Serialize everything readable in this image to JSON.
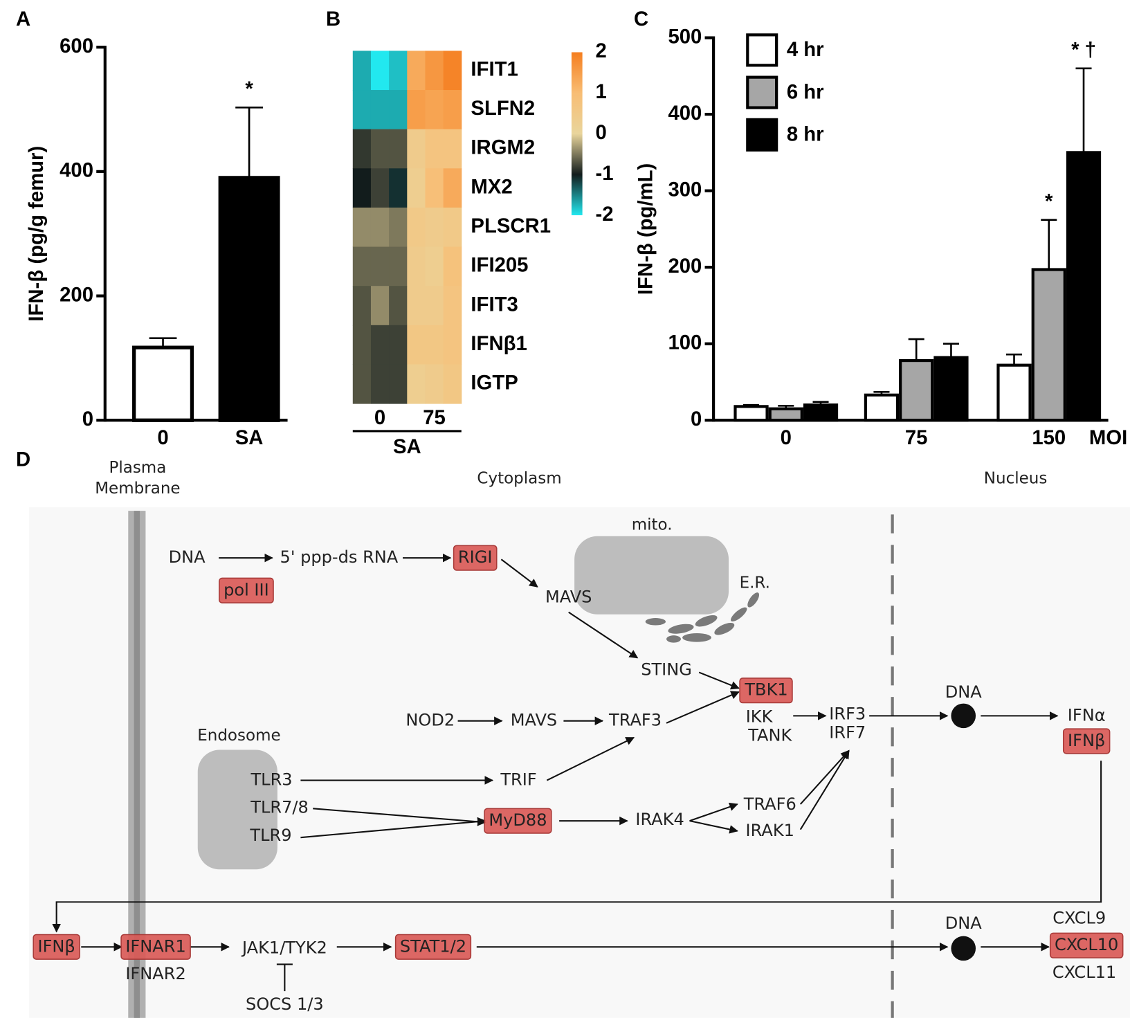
{
  "chart_data": [
    {
      "panel": "A",
      "type": "bar",
      "categories": [
        "0",
        "SA"
      ],
      "values": [
        117,
        390
      ],
      "errors": [
        15,
        113
      ],
      "colors": [
        "#ffffff",
        "#000000"
      ],
      "annotations": [
        null,
        "*"
      ],
      "ylabel": "IFN-β (pg/g femur)",
      "ylim": [
        0,
        600
      ],
      "yticks": [
        0,
        200,
        400,
        600
      ]
    },
    {
      "panel": "B",
      "type": "heatmap",
      "rows": [
        "IFIT1",
        "SLFN2",
        "IRGM2",
        "MX2",
        "PLSCR1",
        "IFI205",
        "IFIT3",
        "IFNβ1",
        "IGTP"
      ],
      "column_groups": [
        "0",
        "75"
      ],
      "xlabel": "SA",
      "values": [
        [
          -1.7,
          -2.0,
          -1.8,
          1.3,
          1.6,
          1.9
        ],
        [
          -1.7,
          -1.7,
          -1.7,
          1.5,
          1.4,
          1.5
        ],
        [
          -0.85,
          -0.7,
          -0.7,
          0.4,
          0.7,
          0.7
        ],
        [
          -1.0,
          -0.8,
          -1.1,
          0.3,
          0.9,
          1.3
        ],
        [
          -0.4,
          -0.4,
          -0.5,
          0.5,
          0.4,
          0.5
        ],
        [
          -0.6,
          -0.6,
          -0.6,
          0.4,
          0.3,
          0.8
        ],
        [
          -0.7,
          -0.4,
          -0.7,
          0.4,
          0.4,
          0.7
        ],
        [
          -0.7,
          -0.8,
          -0.8,
          0.6,
          0.6,
          0.7
        ],
        [
          -0.7,
          -0.8,
          -0.8,
          0.3,
          0.4,
          0.6
        ]
      ],
      "zlim": [
        -2,
        2
      ],
      "zticks": [
        2,
        1,
        0,
        -1,
        -2
      ],
      "zcolors": [
        "#f57e1f",
        "#f8bd74",
        "#e9d59c",
        "#121c1c",
        "#22e8ef"
      ]
    },
    {
      "panel": "C",
      "type": "bar",
      "categories": [
        "0",
        "75",
        "150"
      ],
      "xlabel": "MOI",
      "ylabel": "IFN-β (pg/mL)",
      "ylim": [
        0,
        500
      ],
      "yticks": [
        0,
        100,
        200,
        300,
        400,
        500
      ],
      "legend": "upper left",
      "series": [
        {
          "name": "4 hr",
          "color": "#ffffff",
          "values": [
            18,
            33,
            72
          ],
          "errors": [
            2,
            4,
            14
          ],
          "annotations": [
            null,
            null,
            null
          ]
        },
        {
          "name": "6 hr",
          "color": "#a6a6a6",
          "values": [
            15,
            78,
            197
          ],
          "errors": [
            4,
            28,
            65
          ],
          "annotations": [
            null,
            null,
            "*"
          ]
        },
        {
          "name": "8 hr",
          "color": "#000000",
          "values": [
            20,
            82,
            350
          ],
          "errors": [
            4,
            18,
            110
          ],
          "annotations": [
            null,
            null,
            "* †"
          ]
        }
      ]
    }
  ],
  "diagram": {
    "panel": "D",
    "regions": [
      [
        "Plasma",
        "Membrane"
      ],
      [
        "Cytoplasm"
      ],
      [
        "Nucleus"
      ]
    ],
    "compartments": [
      "mito.",
      "E.R.",
      "Endosome"
    ],
    "highlight_color": "#d95a57",
    "nodes": [
      {
        "label": "DNA",
        "highlight": false
      },
      {
        "label": "pol III",
        "highlight": true
      },
      {
        "label": "5' ppp-ds RNA",
        "highlight": false
      },
      {
        "label": "RIGI",
        "highlight": true
      },
      {
        "label": "MAVS",
        "highlight": false
      },
      {
        "label": "STING",
        "highlight": false
      },
      {
        "label": "TBK1",
        "highlight": true
      },
      {
        "label": "IKK",
        "highlight": false
      },
      {
        "label": "TANK",
        "highlight": false
      },
      {
        "label": "NOD2",
        "highlight": false
      },
      {
        "label": "MAVS",
        "highlight": false
      },
      {
        "label": "TRAF3",
        "highlight": false
      },
      {
        "label": "IRF3",
        "highlight": false
      },
      {
        "label": "IRF7",
        "highlight": false
      },
      {
        "label": "DNA",
        "highlight": false
      },
      {
        "label": "IFNα",
        "highlight": false
      },
      {
        "label": "IFNβ",
        "highlight": true
      },
      {
        "label": "TLR3",
        "highlight": false
      },
      {
        "label": "TLR7/8",
        "highlight": false
      },
      {
        "label": "TLR9",
        "highlight": false
      },
      {
        "label": "TRIF",
        "highlight": false
      },
      {
        "label": "MyD88",
        "highlight": true
      },
      {
        "label": "IRAK4",
        "highlight": false
      },
      {
        "label": "TRAF6",
        "highlight": false
      },
      {
        "label": "IRAK1",
        "highlight": false
      },
      {
        "label": "IFNβ",
        "highlight": true
      },
      {
        "label": "IFNAR1",
        "highlight": true
      },
      {
        "label": "IFNAR2",
        "highlight": false
      },
      {
        "label": "JAK1/TYK2",
        "highlight": false
      },
      {
        "label": "SOCS 1/3",
        "highlight": false
      },
      {
        "label": "STAT1/2",
        "highlight": true
      },
      {
        "label": "DNA",
        "highlight": false
      },
      {
        "label": "CXCL9",
        "highlight": false
      },
      {
        "label": "CXCL10",
        "highlight": true
      },
      {
        "label": "CXCL11",
        "highlight": false
      }
    ]
  }
}
